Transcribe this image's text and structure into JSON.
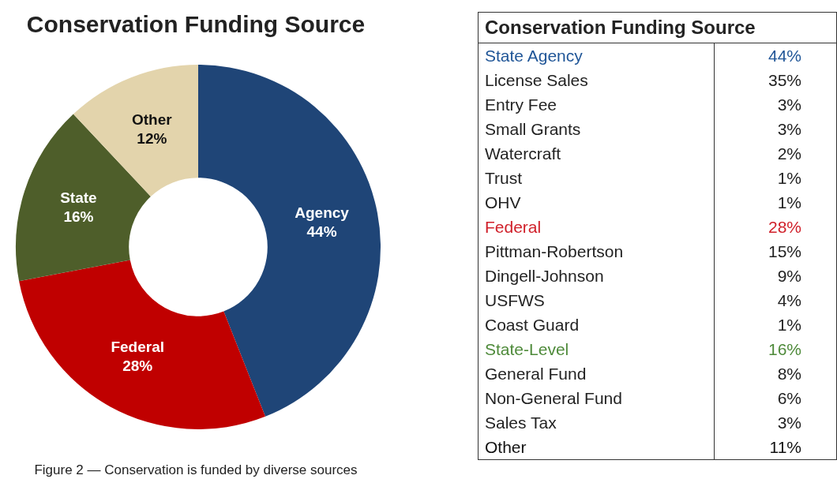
{
  "chart_data": [
    {
      "type": "donut",
      "title": "Conservation Funding Source",
      "categories": [
        "Agency",
        "Federal",
        "State",
        "Other"
      ],
      "values": [
        44,
        28,
        16,
        12
      ],
      "value_labels": [
        "44%",
        "28%",
        "16%",
        "12%"
      ],
      "colors": [
        "#1f4577",
        "#c00000",
        "#4e5e2a",
        "#e3d4ac"
      ],
      "legend": false,
      "annotations": [
        "Figure 2 — Conservation is funded by diverse sources"
      ]
    },
    {
      "type": "other",
      "title": "Conservation Funding Source",
      "categories": [
        "State Agency",
        "License Sales",
        "Entry Fee",
        "Small Grants",
        "Watercraft",
        "Trust",
        "OHV",
        "Federal",
        "Pittman-Robertson",
        "Dingell-Johnson",
        "USFWS",
        "Coast Guard",
        "State-Level",
        "General Fund",
        "Non-General Fund",
        "Sales Tax",
        "Other"
      ],
      "value_labels": [
        "44%",
        "35%",
        "3%",
        "3%",
        "2%",
        "1%",
        "1%",
        "28%",
        "15%",
        "9%",
        "4%",
        "1%",
        "16%",
        "8%",
        "6%",
        "3%",
        "11%"
      ],
      "colors": [
        "#1f5597",
        "#222222",
        "#222222",
        "#222222",
        "#222222",
        "#222222",
        "#222222",
        "#d0202a",
        "#222222",
        "#222222",
        "#222222",
        "#222222",
        "#4e8a3a",
        "#222222",
        "#222222",
        "#222222",
        "#111111"
      ]
    }
  ]
}
